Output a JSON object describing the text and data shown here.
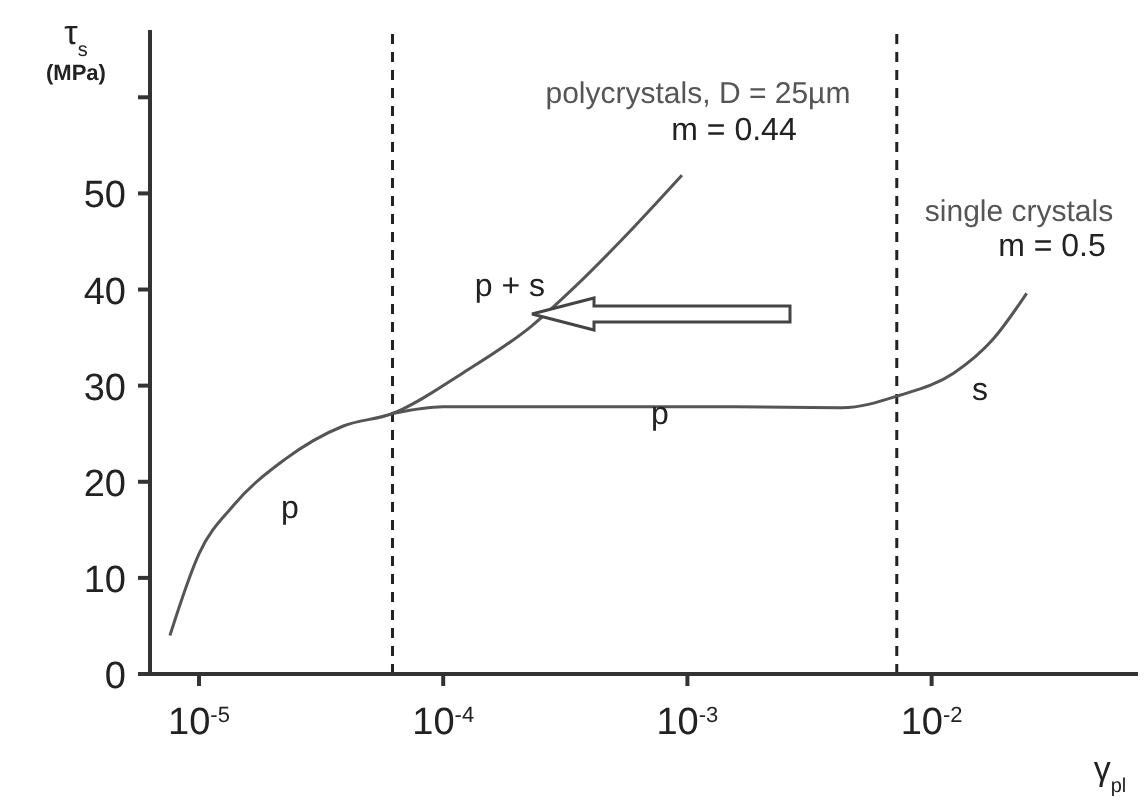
{
  "chart_data": {
    "type": "line",
    "xlabel": "γ$_{pl}$",
    "ylabel": "τ$_{s}$ (MPa)",
    "log": "x",
    "xlim": [
      6.3e-06,
      0.07
    ],
    "ylim": [
      0,
      67
    ],
    "xticks": [
      {
        "value": 1e-05,
        "label": "10$^{-5}$"
      },
      {
        "value": 0.0001,
        "label": "10$^{-4}$"
      },
      {
        "value": 0.001,
        "label": "10$^{-3}$"
      },
      {
        "value": 0.01,
        "label": "10$^{-2}$"
      }
    ],
    "yticks": [
      0,
      10,
      20,
      30,
      40,
      50,
      {
        "value": 60,
        "label": null
      }
    ],
    "marker": "none",
    "line_style": "solid",
    "series": [
      {
        "name": "polycrystals, D = 25µm",
        "color": "#555555",
        "x": [
          7.6e-06,
          1e-05,
          1.38e-05,
          2.24e-05,
          3.9e-05,
          6.2e-05,
          0.00012,
          0.00023,
          0.00035,
          0.00054,
          0.00095
        ],
        "values": [
          4,
          12.5,
          17.5,
          22.3,
          25.8,
          27.1,
          31.3,
          36.2,
          40.4,
          45.2,
          51.9
        ]
      },
      {
        "name": "single crystals",
        "color": "#555555",
        "x": [
          6.2e-05,
          0.0001,
          0.0004,
          0.0015,
          0.0043,
          0.0074,
          0.0123,
          0.0178,
          0.0245
        ],
        "values": [
          27.1,
          27.8,
          27.8,
          27.8,
          27.7,
          29,
          31.3,
          34.8,
          39.6
        ]
      }
    ],
    "ref_lines": [
      {
        "axis": "x",
        "value": 6.2e-05,
        "line_style": "dashed",
        "color": "#222222"
      },
      {
        "axis": "x",
        "value": 0.0072,
        "line_style": "dashed",
        "color": "#222222"
      }
    ],
    "annotations": [
      "m = 0.44",
      "m = 0.5",
      "p",
      "p + s",
      "p",
      "s"
    ]
  }
}
